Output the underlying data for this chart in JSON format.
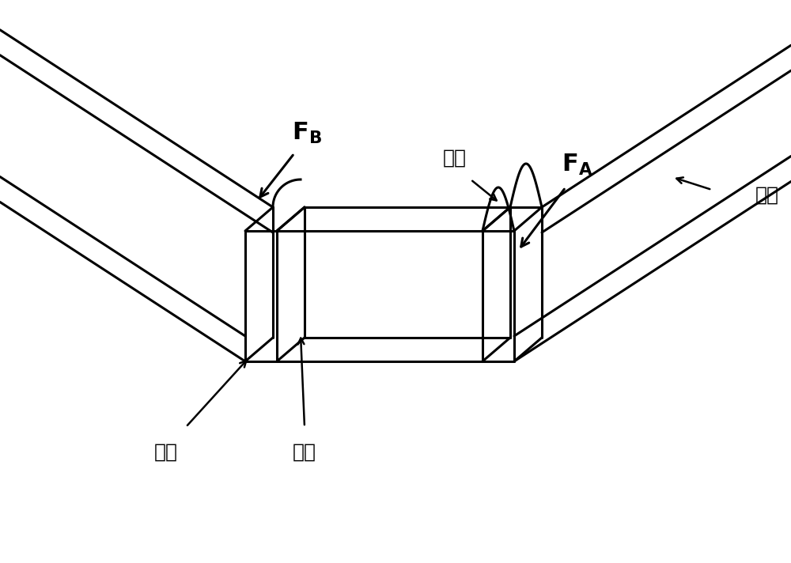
{
  "background_color": "#ffffff",
  "line_color": "#000000",
  "line_width": 2.2,
  "fig_width": 10.0,
  "fig_height": 7.12,
  "dpi": 100,
  "labels": {
    "convex1": "凸边",
    "convex2": "凸边",
    "convex3": "凸边",
    "concave1": "凹边"
  }
}
